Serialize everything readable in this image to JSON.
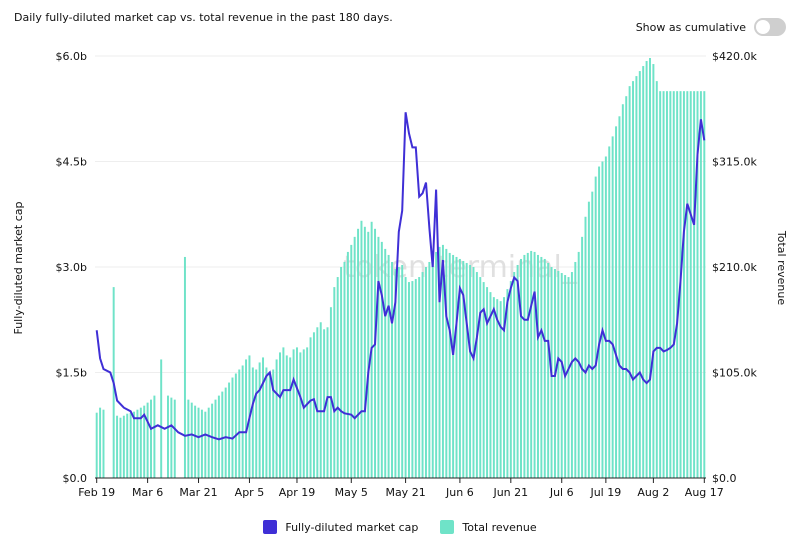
{
  "header": {
    "title": "Daily fully-diluted market cap vs. total revenue in the past 180 days.",
    "toggle_label": "Show as cumulative"
  },
  "colors": {
    "market_cap": "#3f2fd6",
    "revenue": "#6fe3c8",
    "grid": "#eeeeee",
    "axis": "#222222"
  },
  "watermark": "token terminal_",
  "legend": {
    "market_cap": "Fully-diluted market cap",
    "revenue": "Total revenue"
  },
  "chart_data": {
    "type": "bar+line",
    "x_start_date": "Feb 19",
    "num_days": 180,
    "x_tick_labels": [
      "Feb 19",
      "Mar 6",
      "Mar 21",
      "Apr 5",
      "Apr 19",
      "May 5",
      "May 21",
      "Jun 6",
      "Jun 21",
      "Jul 6",
      "Jul 19",
      "Aug 2",
      "Aug 17"
    ],
    "x_tick_days": [
      0,
      15,
      30,
      45,
      59,
      75,
      91,
      107,
      122,
      137,
      150,
      164,
      179
    ],
    "left_axis": {
      "label": "Fully-diluted market cap",
      "min": 0,
      "max": 6.0,
      "ticks": [
        "$0.0",
        "$1.5b",
        "$3.0b",
        "$4.5b",
        "$6.0b"
      ],
      "unit": "billion USD"
    },
    "right_axis": {
      "label": "Total revenue",
      "min": 0,
      "max": 420,
      "ticks": [
        "$0.0",
        "$105.0k",
        "$210.0k",
        "$315.0k",
        "$420.0k"
      ],
      "unit": "thousand USD"
    },
    "market_cap_keypoints": [
      [
        0,
        2.1
      ],
      [
        1,
        1.7
      ],
      [
        2,
        1.55
      ],
      [
        4,
        1.5
      ],
      [
        5,
        1.35
      ],
      [
        6,
        1.1
      ],
      [
        8,
        1.0
      ],
      [
        10,
        0.95
      ],
      [
        11,
        0.85
      ],
      [
        13,
        0.85
      ],
      [
        14,
        0.9
      ],
      [
        15,
        0.8
      ],
      [
        16,
        0.7
      ],
      [
        18,
        0.75
      ],
      [
        20,
        0.7
      ],
      [
        22,
        0.75
      ],
      [
        24,
        0.65
      ],
      [
        26,
        0.6
      ],
      [
        28,
        0.62
      ],
      [
        30,
        0.58
      ],
      [
        32,
        0.62
      ],
      [
        34,
        0.58
      ],
      [
        36,
        0.55
      ],
      [
        38,
        0.58
      ],
      [
        40,
        0.56
      ],
      [
        42,
        0.65
      ],
      [
        44,
        0.65
      ],
      [
        45,
        0.85
      ],
      [
        46,
        1.05
      ],
      [
        47,
        1.2
      ],
      [
        48,
        1.25
      ],
      [
        49,
        1.35
      ],
      [
        50,
        1.45
      ],
      [
        51,
        1.5
      ],
      [
        52,
        1.25
      ],
      [
        53,
        1.2
      ],
      [
        54,
        1.15
      ],
      [
        55,
        1.25
      ],
      [
        57,
        1.25
      ],
      [
        58,
        1.4
      ],
      [
        60,
        1.15
      ],
      [
        61,
        1.0
      ],
      [
        62,
        1.05
      ],
      [
        63,
        1.1
      ],
      [
        64,
        1.12
      ],
      [
        65,
        0.95
      ],
      [
        67,
        0.95
      ],
      [
        68,
        1.15
      ],
      [
        69,
        1.15
      ],
      [
        70,
        0.95
      ],
      [
        71,
        1.0
      ],
      [
        72,
        0.95
      ],
      [
        73,
        0.92
      ],
      [
        75,
        0.9
      ],
      [
        76,
        0.85
      ],
      [
        78,
        0.95
      ],
      [
        79,
        0.95
      ],
      [
        80,
        1.5
      ],
      [
        81,
        1.85
      ],
      [
        82,
        1.9
      ],
      [
        83,
        2.8
      ],
      [
        84,
        2.6
      ],
      [
        85,
        2.3
      ],
      [
        86,
        2.45
      ],
      [
        87,
        2.2
      ],
      [
        88,
        2.5
      ],
      [
        89,
        3.5
      ],
      [
        90,
        3.8
      ],
      [
        91,
        5.2
      ],
      [
        92,
        4.9
      ],
      [
        93,
        4.7
      ],
      [
        94,
        4.7
      ],
      [
        95,
        4.0
      ],
      [
        96,
        4.05
      ],
      [
        97,
        4.2
      ],
      [
        98,
        3.55
      ],
      [
        99,
        3.0
      ],
      [
        100,
        4.1
      ],
      [
        101,
        2.5
      ],
      [
        102,
        3.1
      ],
      [
        103,
        2.3
      ],
      [
        104,
        2.1
      ],
      [
        105,
        1.75
      ],
      [
        106,
        2.2
      ],
      [
        107,
        2.7
      ],
      [
        108,
        2.6
      ],
      [
        109,
        2.2
      ],
      [
        110,
        1.8
      ],
      [
        111,
        1.7
      ],
      [
        112,
        2.0
      ],
      [
        113,
        2.35
      ],
      [
        114,
        2.4
      ],
      [
        115,
        2.2
      ],
      [
        116,
        2.3
      ],
      [
        117,
        2.4
      ],
      [
        118,
        2.25
      ],
      [
        119,
        2.15
      ],
      [
        120,
        2.1
      ],
      [
        121,
        2.5
      ],
      [
        122,
        2.7
      ],
      [
        123,
        2.85
      ],
      [
        124,
        2.8
      ],
      [
        125,
        2.3
      ],
      [
        126,
        2.25
      ],
      [
        127,
        2.25
      ],
      [
        128,
        2.45
      ],
      [
        129,
        2.65
      ],
      [
        130,
        2.0
      ],
      [
        131,
        2.1
      ],
      [
        132,
        1.95
      ],
      [
        133,
        1.95
      ],
      [
        134,
        1.45
      ],
      [
        135,
        1.45
      ],
      [
        136,
        1.7
      ],
      [
        137,
        1.65
      ],
      [
        138,
        1.45
      ],
      [
        139,
        1.55
      ],
      [
        140,
        1.65
      ],
      [
        141,
        1.7
      ],
      [
        142,
        1.65
      ],
      [
        143,
        1.55
      ],
      [
        144,
        1.5
      ],
      [
        145,
        1.6
      ],
      [
        146,
        1.55
      ],
      [
        147,
        1.6
      ],
      [
        148,
        1.9
      ],
      [
        149,
        2.1
      ],
      [
        150,
        1.95
      ],
      [
        151,
        1.95
      ],
      [
        152,
        1.9
      ],
      [
        153,
        1.75
      ],
      [
        154,
        1.6
      ],
      [
        155,
        1.55
      ],
      [
        156,
        1.55
      ],
      [
        157,
        1.5
      ],
      [
        158,
        1.4
      ],
      [
        159,
        1.45
      ],
      [
        160,
        1.5
      ],
      [
        161,
        1.4
      ],
      [
        162,
        1.35
      ],
      [
        163,
        1.4
      ],
      [
        164,
        1.8
      ],
      [
        165,
        1.85
      ],
      [
        166,
        1.85
      ],
      [
        167,
        1.8
      ],
      [
        168,
        1.82
      ],
      [
        169,
        1.85
      ],
      [
        170,
        1.9
      ],
      [
        171,
        2.2
      ],
      [
        172,
        2.8
      ],
      [
        173,
        3.5
      ],
      [
        174,
        3.9
      ],
      [
        175,
        3.75
      ],
      [
        176,
        3.6
      ],
      [
        177,
        4.6
      ],
      [
        178,
        5.1
      ],
      [
        179,
        4.8
      ]
    ],
    "revenue_keypoints": [
      [
        0,
        65
      ],
      [
        1,
        70
      ],
      [
        2,
        68
      ],
      [
        3,
        0
      ],
      [
        4,
        0
      ],
      [
        5,
        190
      ],
      [
        6,
        62
      ],
      [
        7,
        60
      ],
      [
        8,
        62
      ],
      [
        9,
        64
      ],
      [
        10,
        65
      ],
      [
        11,
        66
      ],
      [
        12,
        68
      ],
      [
        13,
        70
      ],
      [
        14,
        72
      ],
      [
        15,
        75
      ],
      [
        16,
        78
      ],
      [
        17,
        82
      ],
      [
        18,
        0
      ],
      [
        19,
        118
      ],
      [
        20,
        0
      ],
      [
        21,
        82
      ],
      [
        22,
        80
      ],
      [
        23,
        78
      ],
      [
        24,
        0
      ],
      [
        25,
        0
      ],
      [
        26,
        220
      ],
      [
        27,
        78
      ],
      [
        28,
        75
      ],
      [
        29,
        72
      ],
      [
        30,
        70
      ],
      [
        31,
        68
      ],
      [
        32,
        66
      ],
      [
        33,
        70
      ],
      [
        34,
        74
      ],
      [
        35,
        78
      ],
      [
        36,
        82
      ],
      [
        37,
        86
      ],
      [
        38,
        90
      ],
      [
        39,
        95
      ],
      [
        40,
        100
      ],
      [
        41,
        104
      ],
      [
        42,
        108
      ],
      [
        43,
        112
      ],
      [
        44,
        118
      ],
      [
        45,
        122
      ],
      [
        46,
        110
      ],
      [
        47,
        108
      ],
      [
        48,
        115
      ],
      [
        49,
        120
      ],
      [
        50,
        110
      ],
      [
        51,
        105
      ],
      [
        52,
        108
      ],
      [
        53,
        118
      ],
      [
        54,
        125
      ],
      [
        55,
        130
      ],
      [
        56,
        122
      ],
      [
        57,
        120
      ],
      [
        58,
        128
      ],
      [
        59,
        130
      ],
      [
        60,
        125
      ],
      [
        61,
        128
      ],
      [
        62,
        130
      ],
      [
        63,
        140
      ],
      [
        64,
        145
      ],
      [
        65,
        150
      ],
      [
        66,
        155
      ],
      [
        67,
        148
      ],
      [
        68,
        150
      ],
      [
        69,
        170
      ],
      [
        70,
        190
      ],
      [
        71,
        200
      ],
      [
        72,
        210
      ],
      [
        73,
        215
      ],
      [
        74,
        225
      ],
      [
        75,
        232
      ],
      [
        76,
        240
      ],
      [
        77,
        248
      ],
      [
        78,
        256
      ],
      [
        79,
        250
      ],
      [
        80,
        245
      ],
      [
        81,
        255
      ],
      [
        82,
        248
      ],
      [
        83,
        240
      ],
      [
        84,
        235
      ],
      [
        85,
        228
      ],
      [
        86,
        222
      ],
      [
        87,
        215
      ],
      [
        88,
        208
      ],
      [
        89,
        210
      ],
      [
        90,
        212
      ],
      [
        91,
        200
      ],
      [
        92,
        195
      ],
      [
        93,
        196
      ],
      [
        94,
        198
      ],
      [
        95,
        200
      ],
      [
        96,
        205
      ],
      [
        97,
        210
      ],
      [
        98,
        215
      ],
      [
        99,
        220
      ],
      [
        100,
        225
      ],
      [
        101,
        230
      ],
      [
        102,
        232
      ],
      [
        103,
        228
      ],
      [
        104,
        224
      ],
      [
        105,
        222
      ],
      [
        106,
        220
      ],
      [
        107,
        218
      ],
      [
        108,
        216
      ],
      [
        109,
        214
      ],
      [
        110,
        212
      ],
      [
        111,
        210
      ],
      [
        112,
        205
      ],
      [
        113,
        200
      ],
      [
        114,
        195
      ],
      [
        115,
        190
      ],
      [
        116,
        185
      ],
      [
        117,
        180
      ],
      [
        118,
        178
      ],
      [
        119,
        176
      ],
      [
        120,
        180
      ],
      [
        121,
        188
      ],
      [
        122,
        196
      ],
      [
        123,
        205
      ],
      [
        124,
        212
      ],
      [
        125,
        218
      ],
      [
        126,
        222
      ],
      [
        127,
        224
      ],
      [
        128,
        226
      ],
      [
        129,
        225
      ],
      [
        130,
        222
      ],
      [
        131,
        220
      ],
      [
        132,
        218
      ],
      [
        133,
        214
      ],
      [
        134,
        210
      ],
      [
        135,
        208
      ],
      [
        136,
        206
      ],
      [
        137,
        204
      ],
      [
        138,
        202
      ],
      [
        139,
        200
      ],
      [
        140,
        205
      ],
      [
        141,
        215
      ],
      [
        142,
        225
      ],
      [
        143,
        240
      ],
      [
        144,
        260
      ],
      [
        145,
        275
      ],
      [
        146,
        285
      ],
      [
        147,
        300
      ],
      [
        148,
        310
      ],
      [
        149,
        315
      ],
      [
        150,
        320
      ],
      [
        151,
        330
      ],
      [
        152,
        340
      ],
      [
        153,
        350
      ],
      [
        154,
        360
      ],
      [
        155,
        372
      ],
      [
        156,
        380
      ],
      [
        157,
        390
      ],
      [
        158,
        395
      ],
      [
        159,
        400
      ],
      [
        160,
        405
      ],
      [
        161,
        410
      ],
      [
        162,
        415
      ],
      [
        163,
        418
      ],
      [
        164,
        412
      ],
      [
        165,
        395
      ],
      [
        166,
        385
      ]
    ]
  }
}
